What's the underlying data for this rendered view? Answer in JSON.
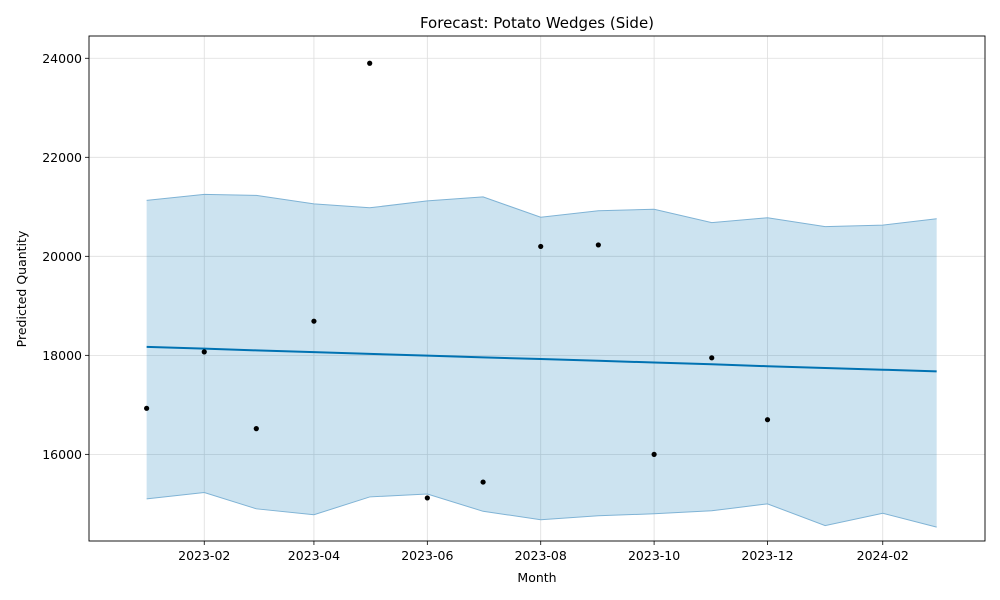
{
  "chart_data": {
    "type": "line",
    "title": "Forecast: Potato Wedges (Side)",
    "xlabel": "Month",
    "ylabel": "Predicted Quantity",
    "x_range": [
      "2022-12-01",
      "2024-03-27"
    ],
    "ylim": [
      14250,
      24450
    ],
    "grid": true,
    "x_ticks": [
      "2023-02-01",
      "2023-04-01",
      "2023-06-01",
      "2023-08-01",
      "2023-10-01",
      "2023-12-01",
      "2024-02-01"
    ],
    "x_tick_labels": [
      "2023-02",
      "2023-04",
      "2023-06",
      "2023-08",
      "2023-10",
      "2023-12",
      "2024-02"
    ],
    "y_ticks": [
      16000,
      18000,
      20000,
      22000,
      24000
    ],
    "y_tick_labels": [
      "16000",
      "18000",
      "20000",
      "22000",
      "24000"
    ],
    "colors": {
      "forecast_line": "#0072B2",
      "band_fill": "#0072B2",
      "band_edge": "#7fb3d5",
      "actual_points": "#000000",
      "grid": "#dddddd"
    },
    "forecast": {
      "x": [
        "2023-01-01",
        "2023-02-01",
        "2023-03-01",
        "2023-04-01",
        "2023-05-01",
        "2023-06-01",
        "2023-07-01",
        "2023-08-01",
        "2023-09-01",
        "2023-10-01",
        "2023-11-01",
        "2023-12-01",
        "2024-01-01",
        "2024-02-01",
        "2024-03-01"
      ],
      "yhat": [
        18170,
        18135,
        18100,
        18065,
        18030,
        17995,
        17960,
        17925,
        17890,
        17855,
        17820,
        17780,
        17745,
        17710,
        17675
      ],
      "yhat_lower": [
        15100,
        15230,
        14900,
        14780,
        15140,
        15200,
        14850,
        14680,
        14760,
        14800,
        14860,
        15000,
        14560,
        14810,
        14530
      ],
      "yhat_upper": [
        21130,
        21250,
        21230,
        21060,
        20980,
        21120,
        21200,
        20790,
        20920,
        20950,
        20680,
        20780,
        20600,
        20630,
        20760
      ]
    },
    "actual": {
      "x": [
        "2023-01-01",
        "2023-02-01",
        "2023-03-01",
        "2023-04-01",
        "2023-05-01",
        "2023-06-01",
        "2023-07-01",
        "2023-08-01",
        "2023-09-01",
        "2023-10-01",
        "2023-11-01",
        "2023-12-01"
      ],
      "y": [
        16930,
        18070,
        16520,
        18690,
        23900,
        15120,
        15440,
        20200,
        20230,
        16000,
        17950,
        16700
      ]
    }
  }
}
